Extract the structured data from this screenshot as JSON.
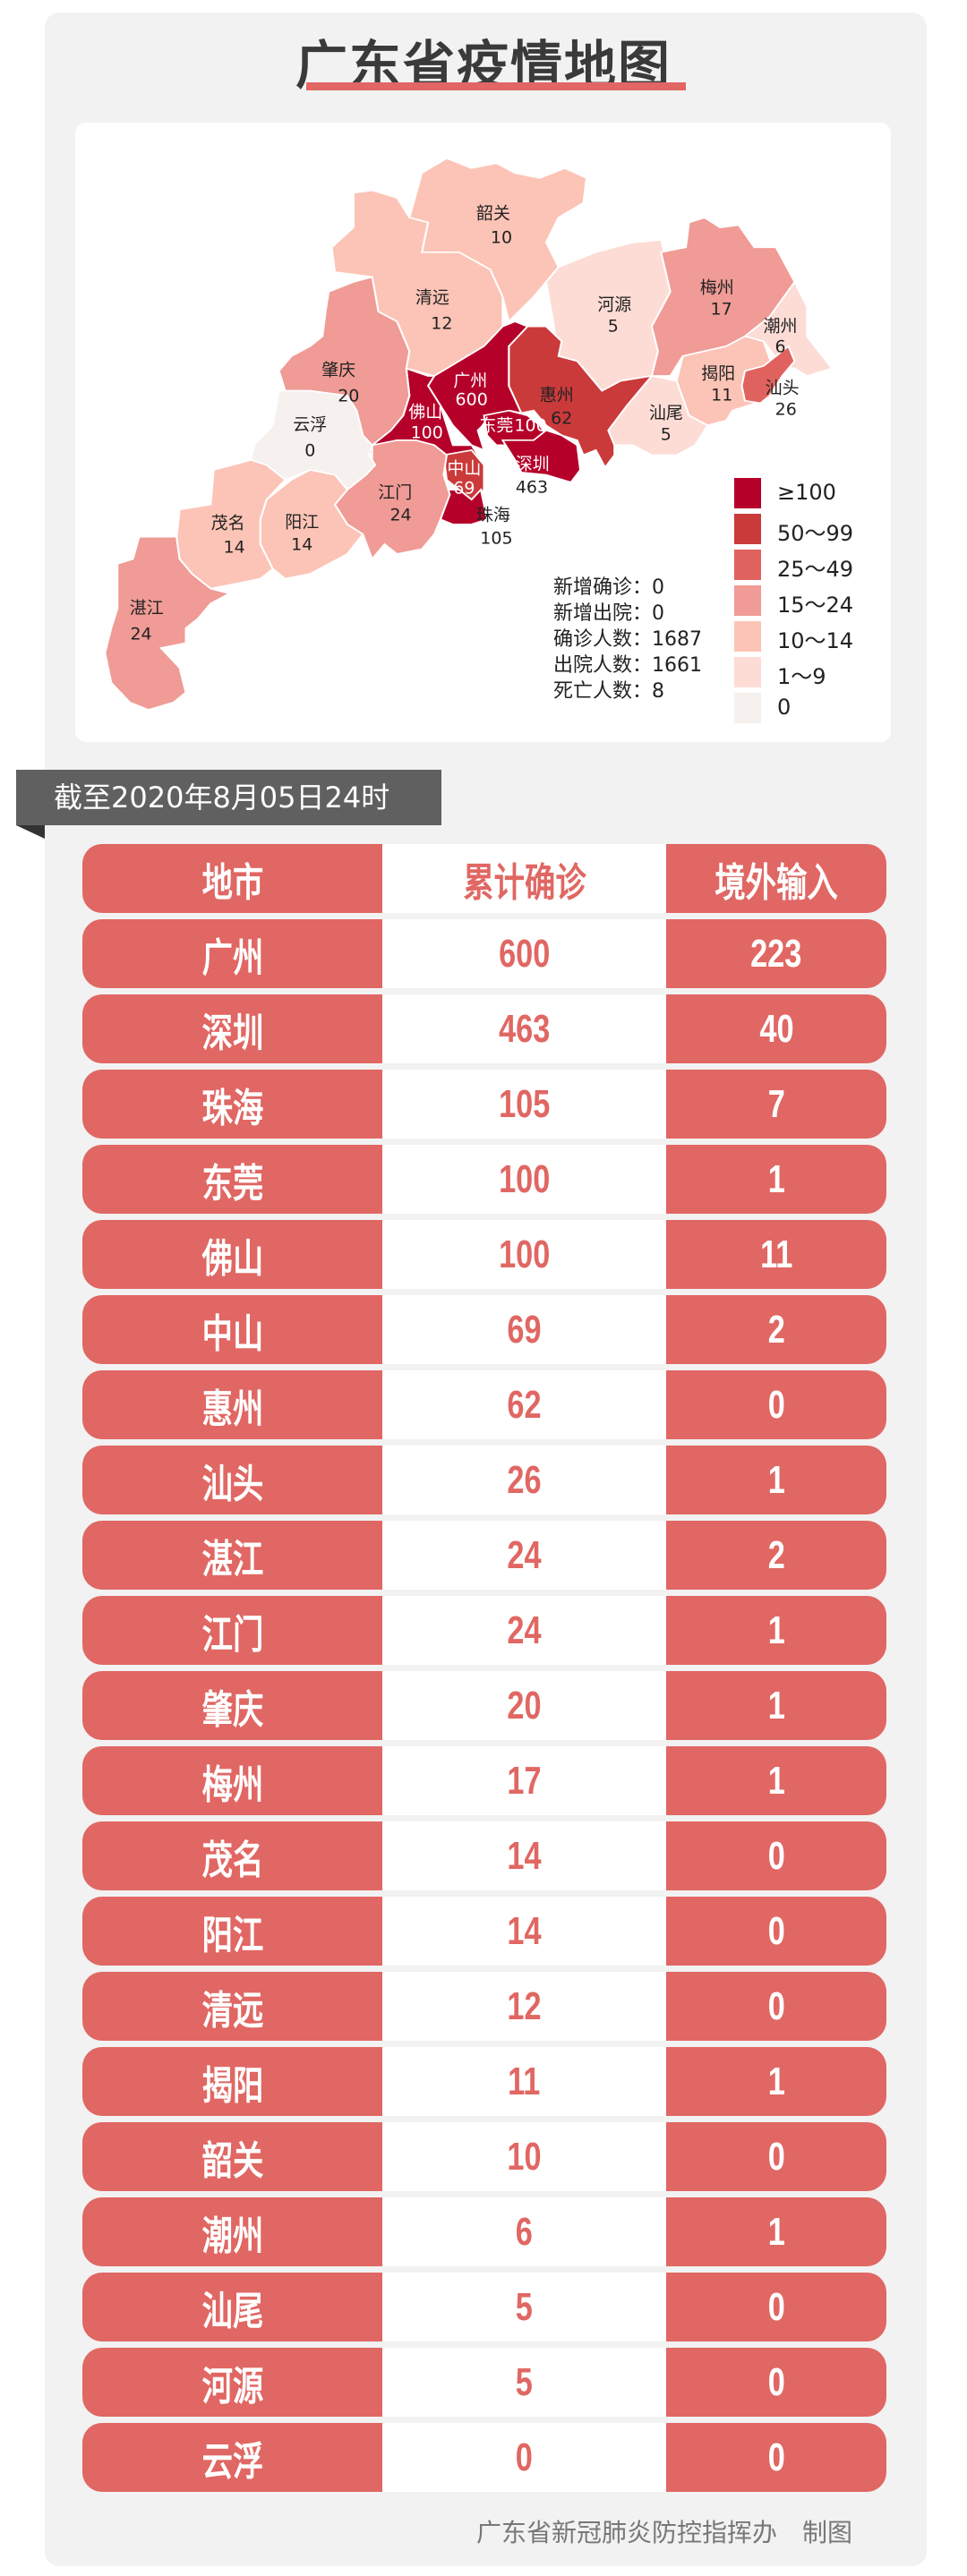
{
  "title": "广东省疫情地图",
  "colors": {
    "accent": "#e06763",
    "panel": "#f2f2f2",
    "banner": "#606060"
  },
  "legend": [
    {
      "label": "≥100",
      "color": "#b5002a"
    },
    {
      "label": "50～99",
      "color": "#cb3a3a"
    },
    {
      "label": "25～49",
      "color": "#e0625f"
    },
    {
      "label": "15～24",
      "color": "#f09b96"
    },
    {
      "label": "10～14",
      "color": "#fcc4b6"
    },
    {
      "label": "1～9",
      "color": "#fddcd6"
    },
    {
      "label": "0",
      "color": "#f6f0ef"
    }
  ],
  "stats": [
    {
      "label": "新增确诊",
      "value": "0"
    },
    {
      "label": "新增出院",
      "value": "0"
    },
    {
      "label": "确诊人数",
      "value": "1687"
    },
    {
      "label": "出院人数",
      "value": "1661"
    },
    {
      "label": "死亡人数",
      "value": "8"
    }
  ],
  "map_regions": [
    {
      "name": "韶关",
      "count": "10",
      "level": 4
    },
    {
      "name": "清远",
      "count": "12",
      "level": 4
    },
    {
      "name": "河源",
      "count": "5",
      "level": 5
    },
    {
      "name": "梅州",
      "count": "17",
      "level": 3
    },
    {
      "name": "潮州",
      "count": "6",
      "level": 5
    },
    {
      "name": "揭阳",
      "count": "11",
      "level": 4
    },
    {
      "name": "汕头",
      "count": "26",
      "level": 2
    },
    {
      "name": "汕尾",
      "count": "5",
      "level": 5
    },
    {
      "name": "惠州",
      "count": "62",
      "level": 1
    },
    {
      "name": "广州",
      "count": "600",
      "level": 0
    },
    {
      "name": "东莞",
      "count": "100",
      "level": 0
    },
    {
      "name": "深圳",
      "count": "463",
      "level": 0
    },
    {
      "name": "佛山",
      "count": "100",
      "level": 0
    },
    {
      "name": "中山",
      "count": "69",
      "level": 1
    },
    {
      "name": "珠海",
      "count": "105",
      "level": 0
    },
    {
      "name": "江门",
      "count": "24",
      "level": 3
    },
    {
      "name": "肇庆",
      "count": "20",
      "level": 3
    },
    {
      "name": "云浮",
      "count": "0",
      "level": 6
    },
    {
      "name": "阳江",
      "count": "14",
      "level": 4
    },
    {
      "name": "茂名",
      "count": "14",
      "level": 4
    },
    {
      "name": "湛江",
      "count": "24",
      "level": 3
    }
  ],
  "timestamp": "截至2020年8月05日24时",
  "table": {
    "headers": [
      "地市",
      "累计确诊",
      "境外输入"
    ],
    "rows": [
      [
        "广州",
        "600",
        "223"
      ],
      [
        "深圳",
        "463",
        "40"
      ],
      [
        "珠海",
        "105",
        "7"
      ],
      [
        "东莞",
        "100",
        "1"
      ],
      [
        "佛山",
        "100",
        "11"
      ],
      [
        "中山",
        "69",
        "2"
      ],
      [
        "惠州",
        "62",
        "0"
      ],
      [
        "汕头",
        "26",
        "1"
      ],
      [
        "湛江",
        "24",
        "2"
      ],
      [
        "江门",
        "24",
        "1"
      ],
      [
        "肇庆",
        "20",
        "1"
      ],
      [
        "梅州",
        "17",
        "1"
      ],
      [
        "茂名",
        "14",
        "0"
      ],
      [
        "阳江",
        "14",
        "0"
      ],
      [
        "清远",
        "12",
        "0"
      ],
      [
        "揭阳",
        "11",
        "1"
      ],
      [
        "韶关",
        "10",
        "0"
      ],
      [
        "潮州",
        "6",
        "1"
      ],
      [
        "汕尾",
        "5",
        "0"
      ],
      [
        "河源",
        "5",
        "0"
      ],
      [
        "云浮",
        "0",
        "0"
      ]
    ]
  },
  "footer": "广东省新冠肺炎防控指挥办　制图"
}
